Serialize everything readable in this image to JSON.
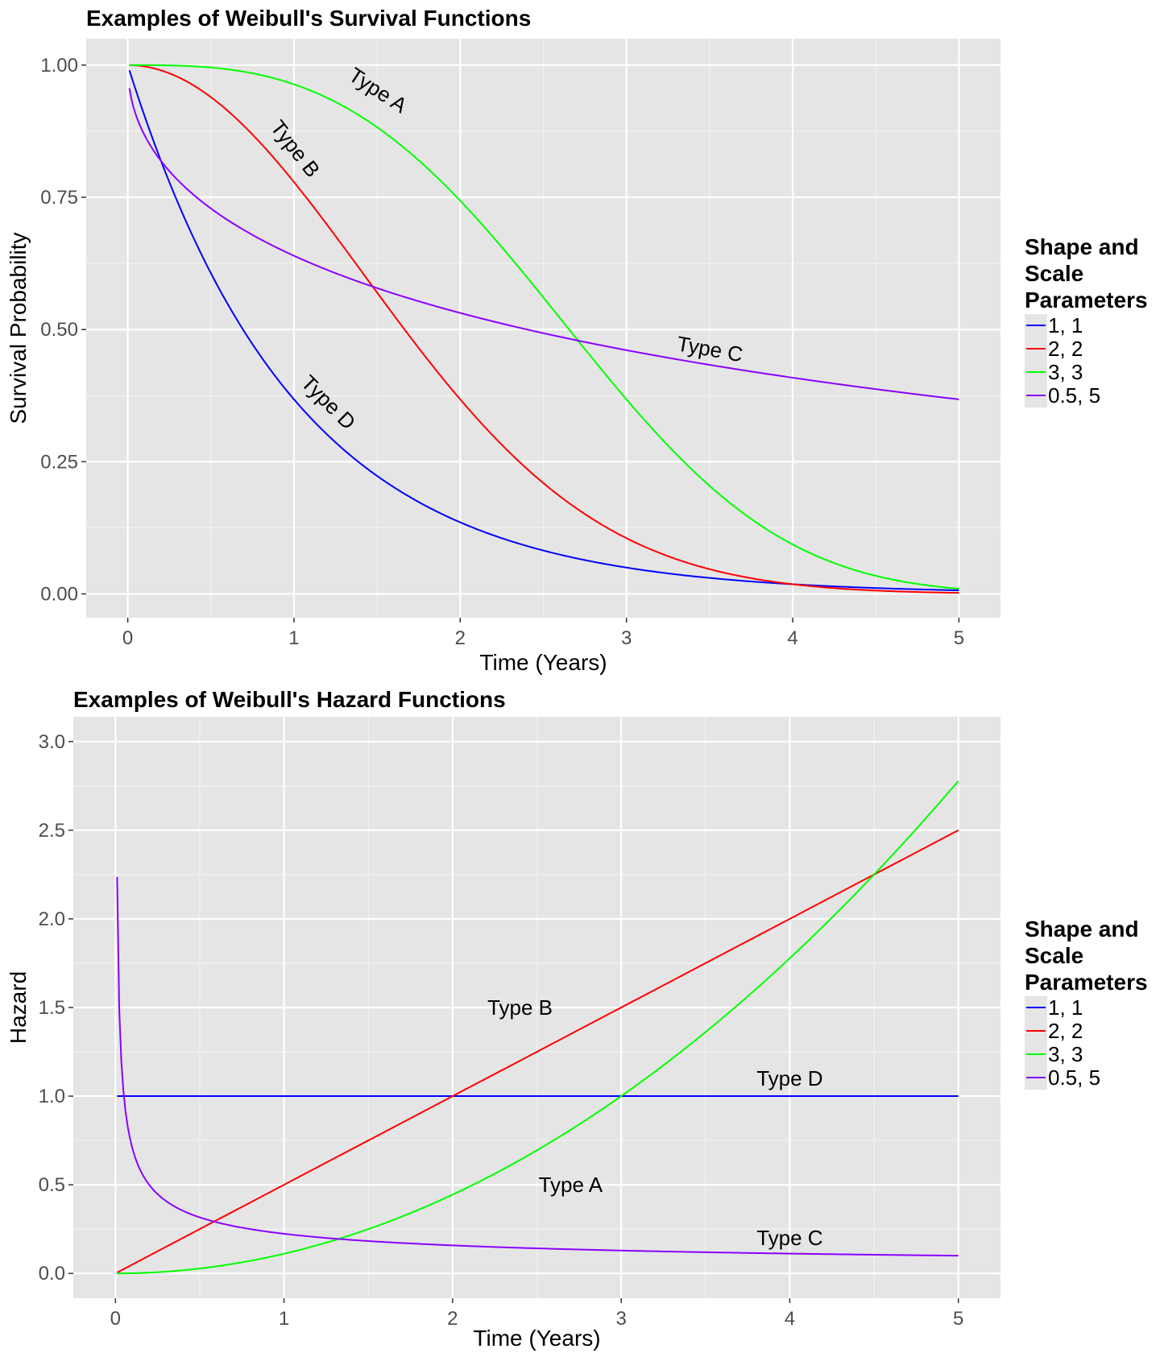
{
  "chart_data": [
    {
      "type": "line",
      "title": "Examples of Weibull's Survival Functions",
      "xlabel": "Time (Years)",
      "ylabel": "Survival Probability",
      "xlim": [
        -0.25,
        5.25
      ],
      "ylim": [
        -0.045,
        1.05
      ],
      "xticks": [
        0,
        1,
        2,
        3,
        4,
        5
      ],
      "yticks": [
        0,
        0.25,
        0.5,
        0.75,
        1.0
      ],
      "xtick_labels": [
        "0",
        "1",
        "2",
        "3",
        "4",
        "5"
      ],
      "ytick_labels": [
        "0.00",
        "0.25",
        "0.50",
        "0.75",
        "1.00"
      ],
      "grid": true,
      "function": "survival",
      "x_range": [
        0.01,
        5
      ],
      "series": [
        {
          "name": "1, 1",
          "shape": 1,
          "scale": 1,
          "color": "#0000ff"
        },
        {
          "name": "2, 2",
          "shape": 2,
          "scale": 2,
          "color": "#ff0000"
        },
        {
          "name": "3, 3",
          "shape": 3,
          "scale": 3,
          "color": "#00ff00"
        },
        {
          "name": "0.5, 5",
          "shape": 0.5,
          "scale": 5,
          "color": "#8b00ff"
        }
      ],
      "annotations": [
        {
          "text": "Type A",
          "x": 1.5,
          "y": 0.95,
          "angle": 33
        },
        {
          "text": "Type B",
          "x": 1.0,
          "y": 0.84,
          "angle": 52
        },
        {
          "text": "Type C",
          "x": 3.5,
          "y": 0.46,
          "angle": 10
        },
        {
          "text": "Type D",
          "x": 1.2,
          "y": 0.36,
          "angle": 45
        }
      ],
      "legend": {
        "title": [
          "Shape and",
          "Scale",
          "Parameters"
        ],
        "position": "right"
      }
    },
    {
      "type": "line",
      "title": "Examples of Weibull's Hazard Functions",
      "xlabel": "Time (Years)",
      "ylabel": "Hazard",
      "xlim": [
        -0.25,
        5.25
      ],
      "ylim": [
        -0.14,
        3.14
      ],
      "xticks": [
        0,
        1,
        2,
        3,
        4,
        5
      ],
      "yticks": [
        0,
        0.5,
        1.0,
        1.5,
        2.0,
        2.5,
        3.0
      ],
      "xtick_labels": [
        "0",
        "1",
        "2",
        "3",
        "4",
        "5"
      ],
      "ytick_labels": [
        "0.0",
        "0.5",
        "1.0",
        "1.5",
        "2.0",
        "2.5",
        "3.0"
      ],
      "grid": true,
      "function": "hazard",
      "x_range": [
        0.01,
        5
      ],
      "series": [
        {
          "name": "1, 1",
          "shape": 1,
          "scale": 1,
          "color": "#0000ff"
        },
        {
          "name": "2, 2",
          "shape": 2,
          "scale": 2,
          "color": "#ff0000"
        },
        {
          "name": "3, 3",
          "shape": 3,
          "scale": 3,
          "color": "#00ff00"
        },
        {
          "name": "0.5, 5",
          "shape": 0.5,
          "scale": 5,
          "color": "#8b00ff"
        }
      ],
      "annotations": [
        {
          "text": "Type B",
          "x": 2.4,
          "y": 1.49,
          "angle": 0
        },
        {
          "text": "Type D",
          "x": 4.0,
          "y": 1.09,
          "angle": 0
        },
        {
          "text": "Type A",
          "x": 2.7,
          "y": 0.49,
          "angle": 0
        },
        {
          "text": "Type C",
          "x": 4.0,
          "y": 0.19,
          "angle": 0
        }
      ],
      "legend": {
        "title": [
          "Shape and",
          "Scale",
          "Parameters"
        ],
        "position": "right"
      }
    }
  ]
}
